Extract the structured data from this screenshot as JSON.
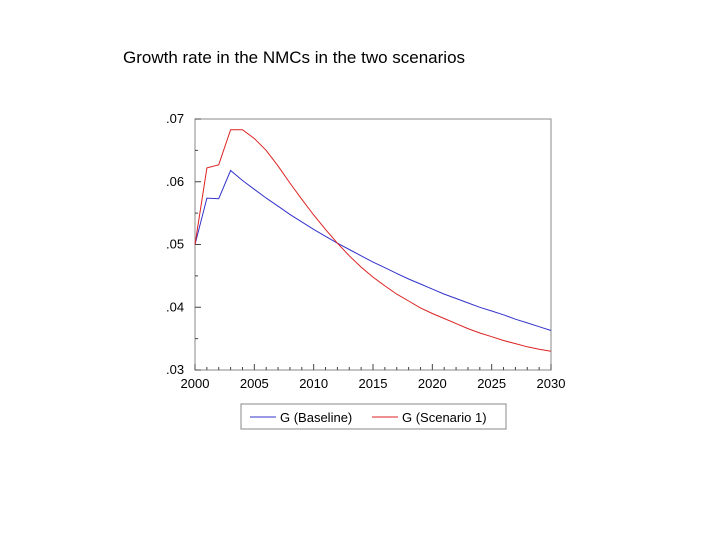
{
  "slide": {
    "title": "Growth rate in the NMCs in the two scenarios"
  },
  "chart_data": {
    "type": "line",
    "title": "Growth rate in the NMCs in the two scenarios",
    "xlabel": "",
    "ylabel": "",
    "xlim": [
      2000,
      2030
    ],
    "ylim": [
      0.03,
      0.07
    ],
    "x_ticks": [
      2000,
      2005,
      2010,
      2015,
      2020,
      2025,
      2030
    ],
    "x_tick_labels": [
      "2000",
      "2005",
      "2010",
      "2015",
      "2020",
      "2025",
      "2030"
    ],
    "y_ticks": [
      0.03,
      0.04,
      0.05,
      0.06,
      0.07
    ],
    "y_tick_labels": [
      ".03",
      ".04",
      ".05",
      ".06",
      ".07"
    ],
    "legend_position": "bottom",
    "grid": false,
    "series": [
      {
        "name": "G (Baseline)",
        "color": "#3333cc",
        "x": [
          2000,
          2001,
          2002,
          2003,
          2004,
          2005,
          2006,
          2007,
          2008,
          2009,
          2010,
          2011,
          2012,
          2013,
          2014,
          2015,
          2016,
          2017,
          2018,
          2019,
          2020,
          2021,
          2022,
          2023,
          2024,
          2025,
          2026,
          2027,
          2028,
          2029,
          2030
        ],
        "values": [
          0.05,
          0.0574,
          0.0573,
          0.0618,
          0.0602,
          0.0588,
          0.0574,
          0.0561,
          0.0548,
          0.0536,
          0.0524,
          0.0513,
          0.0502,
          0.0492,
          0.0482,
          0.0472,
          0.0463,
          0.0454,
          0.0445,
          0.0437,
          0.0429,
          0.0421,
          0.0414,
          0.0407,
          0.04,
          0.0394,
          0.0388,
          0.0381,
          0.0375,
          0.0369,
          0.0363
        ]
      },
      {
        "name": "G (Scenario 1)",
        "color": "#dd2222",
        "x": [
          2000,
          2001,
          2002,
          2003,
          2004,
          2005,
          2006,
          2007,
          2008,
          2009,
          2010,
          2011,
          2012,
          2013,
          2014,
          2015,
          2016,
          2017,
          2018,
          2019,
          2020,
          2021,
          2022,
          2023,
          2024,
          2025,
          2026,
          2027,
          2028,
          2029,
          2030
        ],
        "values": [
          0.05,
          0.0622,
          0.0627,
          0.0683,
          0.0683,
          0.0669,
          0.065,
          0.0625,
          0.0598,
          0.0572,
          0.0547,
          0.0524,
          0.0502,
          0.0482,
          0.0464,
          0.0448,
          0.0434,
          0.0421,
          0.041,
          0.0399,
          0.039,
          0.0382,
          0.0374,
          0.0366,
          0.0359,
          0.0353,
          0.0347,
          0.0342,
          0.0337,
          0.0333,
          0.033
        ]
      }
    ]
  }
}
